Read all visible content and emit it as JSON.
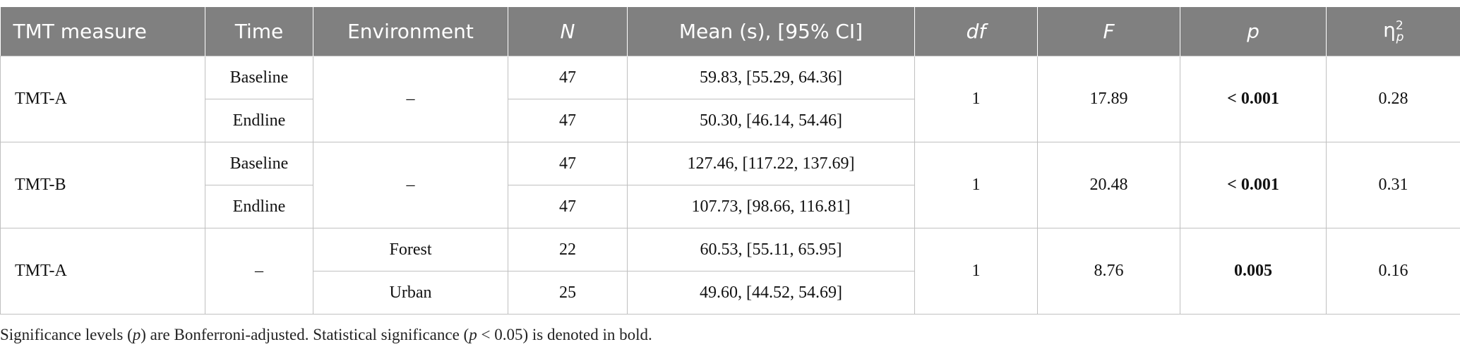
{
  "header": [
    {
      "text": "TMT measure"
    },
    {
      "text": "Time"
    },
    {
      "text": "Environment"
    },
    {
      "text": "N"
    },
    {
      "text": "Mean (s), [95% CI]"
    },
    {
      "text": "df"
    },
    {
      "text": "F"
    },
    {
      "text": "p"
    },
    {
      "symbol": "η",
      "sup": "2",
      "sub": "p"
    }
  ],
  "groups": [
    {
      "measure": "TMT-A",
      "environment": "–",
      "df": 1,
      "F": 17.89,
      "p": "< 0.001",
      "eta": 0.28,
      "rows": [
        {
          "time": "Baseline",
          "n": 47,
          "mean": "59.83, [55.29, 64.36]"
        },
        {
          "time": "Endline",
          "n": 47,
          "mean": "50.30, [46.14, 54.46]"
        }
      ]
    },
    {
      "measure": "TMT-B",
      "environment": "–",
      "df": 1,
      "F": 20.48,
      "p": "< 0.001",
      "eta": 0.31,
      "rows": [
        {
          "time": "Baseline",
          "n": 47,
          "mean": "127.46, [117.22, 137.69]"
        },
        {
          "time": "Endline",
          "n": 47,
          "mean": "107.73, [98.66, 116.81]"
        }
      ]
    },
    {
      "measure": "TMT-A",
      "time": "–",
      "df": 1,
      "F": 8.76,
      "p": "0.005",
      "eta": 0.16,
      "rows": [
        {
          "environment": "Forest",
          "n": 22,
          "mean": "60.53, [55.11, 65.95]"
        },
        {
          "environment": "Urban",
          "n": 25,
          "mean": "49.60, [44.52, 54.69]"
        }
      ]
    }
  ],
  "footnote": [
    "Significance levels (",
    "p",
    ") are Bonferroni-adjusted. Statistical significance (",
    "p",
    " < 0.05) is denoted in bold."
  ]
}
